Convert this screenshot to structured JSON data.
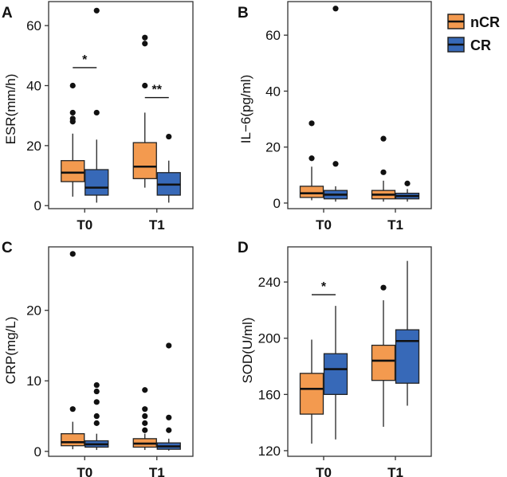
{
  "legend": {
    "items": [
      {
        "label": "nCR",
        "color": "#F39A4F"
      },
      {
        "label": "CR",
        "color": "#3769B8"
      }
    ]
  },
  "chart_data": [
    {
      "panel": "A",
      "type": "box",
      "ylabel": "ESR(mm/h)",
      "categories": [
        "T0",
        "T1"
      ],
      "ylim": [
        -1,
        68
      ],
      "yticks": [
        0,
        20,
        40,
        60
      ],
      "series": [
        {
          "name": "nCR",
          "boxes": [
            {
              "category": "T0",
              "min": 3,
              "q1": 8,
              "median": 11,
              "q3": 15,
              "max": 24,
              "outliers": [
                28,
                29,
                31,
                40
              ]
            },
            {
              "category": "T1",
              "min": 6,
              "q1": 9,
              "median": 13,
              "q3": 21,
              "max": 31,
              "outliers": [
                40,
                54,
                56
              ]
            }
          ]
        },
        {
          "name": "CR",
          "boxes": [
            {
              "category": "T0",
              "min": 1,
              "q1": 3.5,
              "median": 6,
              "q3": 12,
              "max": 22,
              "outliers": [
                31,
                65
              ]
            },
            {
              "category": "T1",
              "min": 1,
              "q1": 3.5,
              "median": 7,
              "q3": 11,
              "max": 15,
              "outliers": [
                23
              ]
            }
          ]
        }
      ],
      "significance": [
        {
          "category": "T0",
          "label": "*",
          "y": 46
        },
        {
          "category": "T1",
          "label": "**",
          "y": 36
        }
      ]
    },
    {
      "panel": "B",
      "type": "box",
      "ylabel": "IL−6(pg/ml)",
      "categories": [
        "T0",
        "T1"
      ],
      "ylim": [
        -2,
        72
      ],
      "yticks": [
        0,
        20,
        40,
        60
      ],
      "series": [
        {
          "name": "nCR",
          "boxes": [
            {
              "category": "T0",
              "min": 1,
              "q1": 2,
              "median": 3.5,
              "q3": 6,
              "max": 13,
              "outliers": [
                16,
                28.5
              ]
            },
            {
              "category": "T1",
              "min": 0.5,
              "q1": 1.5,
              "median": 3,
              "q3": 4.5,
              "max": 8,
              "outliers": [
                11,
                23
              ]
            }
          ]
        },
        {
          "name": "CR",
          "boxes": [
            {
              "category": "T0",
              "min": 0.5,
              "q1": 1.5,
              "median": 3,
              "q3": 4.5,
              "max": 6,
              "outliers": [
                14,
                69.5
              ]
            },
            {
              "category": "T1",
              "min": 0.5,
              "q1": 1.5,
              "median": 2.5,
              "q3": 3.5,
              "max": 5,
              "outliers": [
                7
              ]
            }
          ]
        }
      ],
      "significance": []
    },
    {
      "panel": "C",
      "type": "box",
      "ylabel": "CRP(mg/L)",
      "categories": [
        "T0",
        "T1"
      ],
      "ylim": [
        -0.7,
        29
      ],
      "yticks": [
        0,
        10,
        20
      ],
      "series": [
        {
          "name": "nCR",
          "boxes": [
            {
              "category": "T0",
              "min": 0.3,
              "q1": 0.8,
              "median": 1.3,
              "q3": 2.5,
              "max": 4.2,
              "outliers": [
                6,
                28
              ]
            },
            {
              "category": "T1",
              "min": 0.2,
              "q1": 0.6,
              "median": 1.1,
              "q3": 1.8,
              "max": 2.5,
              "outliers": [
                3,
                4,
                5,
                6,
                8.7
              ]
            }
          ]
        },
        {
          "name": "CR",
          "boxes": [
            {
              "category": "T0",
              "min": 0.2,
              "q1": 0.6,
              "median": 1.0,
              "q3": 1.5,
              "max": 2.5,
              "outliers": [
                4,
                5,
                7,
                8.5,
                9.4
              ]
            },
            {
              "category": "T1",
              "min": 0.1,
              "q1": 0.3,
              "median": 0.7,
              "q3": 1.2,
              "max": 1.8,
              "outliers": [
                3,
                4.8,
                15
              ]
            }
          ]
        }
      ],
      "significance": []
    },
    {
      "panel": "D",
      "type": "box",
      "ylabel": "SOD(U/ml)",
      "categories": [
        "T0",
        "T1"
      ],
      "ylim": [
        116,
        265
      ],
      "yticks": [
        120,
        160,
        200,
        240
      ],
      "series": [
        {
          "name": "nCR",
          "boxes": [
            {
              "category": "T0",
              "min": 125,
              "q1": 146,
              "median": 164,
              "q3": 175,
              "max": 199,
              "outliers": []
            },
            {
              "category": "T1",
              "min": 137,
              "q1": 170,
              "median": 184,
              "q3": 195,
              "max": 227,
              "outliers": [
                236
              ]
            }
          ]
        },
        {
          "name": "CR",
          "boxes": [
            {
              "category": "T0",
              "min": 128,
              "q1": 160,
              "median": 178,
              "q3": 189,
              "max": 223,
              "outliers": []
            },
            {
              "category": "T1",
              "min": 152,
              "q1": 168,
              "median": 198,
              "q3": 206,
              "max": 255,
              "outliers": []
            }
          ]
        }
      ],
      "significance": [
        {
          "category": "T0",
          "label": "*",
          "y": 231
        }
      ]
    }
  ]
}
